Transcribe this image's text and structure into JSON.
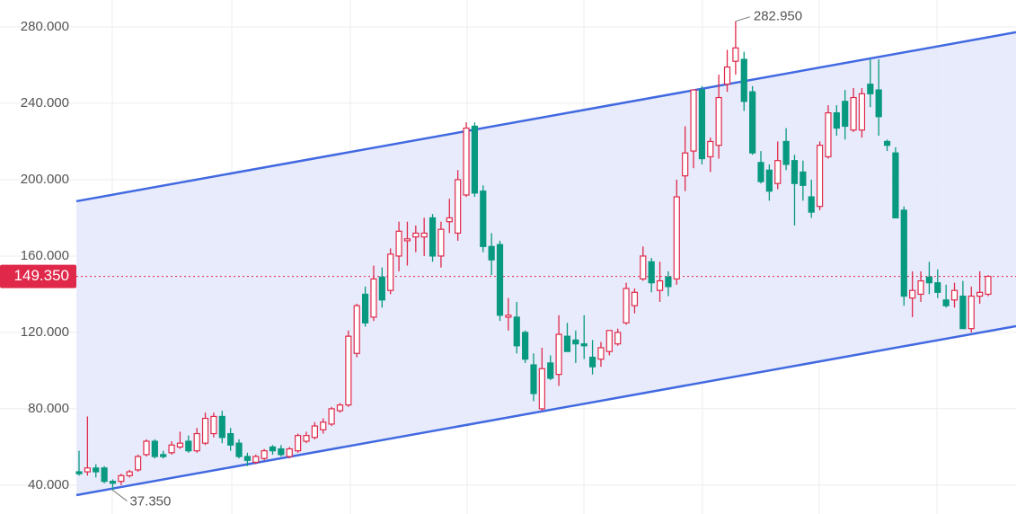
{
  "chart_data": {
    "type": "candlestick",
    "ylim": [
      24.9,
      294.1
    ],
    "yticks": [
      {
        "value": 40,
        "label": "40.000"
      },
      {
        "value": 80,
        "label": "80.000"
      },
      {
        "value": 120,
        "label": "120.000"
      },
      {
        "value": 160,
        "label": "160.000"
      },
      {
        "value": 200,
        "label": "200.000"
      },
      {
        "value": 240,
        "label": "240.000"
      },
      {
        "value": 280,
        "label": "280.000"
      }
    ],
    "grid": true,
    "up_color": "#e0294a",
    "down_color": "#089981",
    "open": [
      47,
      47,
      49,
      49,
      42,
      42,
      45,
      48,
      56,
      63,
      56,
      57,
      60,
      63,
      58,
      62,
      67,
      76,
      67,
      62,
      55,
      52,
      54,
      60,
      59,
      55,
      58,
      63,
      65,
      69,
      72,
      79,
      82,
      109,
      140,
      128,
      149,
      142,
      160,
      168,
      170,
      170,
      180,
      160,
      178,
      172,
      192,
      228,
      194,
      165,
      166,
      128,
      128,
      120,
      103,
      80,
      104,
      98,
      118,
      116,
      114,
      107,
      106,
      110,
      114,
      125,
      134,
      148,
      157,
      142,
      149,
      148,
      202,
      215,
      247,
      212,
      218,
      250,
      262,
      263,
      246,
      209,
      205,
      198,
      220,
      210,
      204,
      191,
      186,
      212,
      235,
      241,
      226,
      226,
      250,
      247,
      220,
      214,
      184,
      138,
      140,
      149,
      146,
      137,
      137,
      139,
      122,
      139,
      140
    ],
    "high": [
      58,
      76,
      51,
      50,
      43,
      46,
      48,
      56,
      64,
      64,
      58,
      63,
      68,
      66,
      70,
      78,
      78,
      79,
      70,
      64,
      57,
      56,
      59,
      61,
      61,
      60,
      67,
      68,
      73,
      75,
      81,
      83,
      121,
      135,
      144,
      155,
      154,
      164,
      178,
      178,
      176,
      180,
      182,
      178,
      190,
      205,
      230,
      230,
      197,
      172,
      168,
      138,
      136,
      121,
      109,
      112,
      108,
      129,
      125,
      121,
      129,
      116,
      115,
      121,
      122,
      146,
      143,
      165,
      159,
      157,
      152,
      200,
      228,
      247,
      249,
      222,
      255,
      268,
      282.95,
      267,
      249,
      215,
      208,
      220,
      227,
      213,
      210,
      200,
      220,
      239,
      239,
      247,
      248,
      248,
      263,
      263,
      221,
      217,
      186,
      152,
      152,
      157,
      153,
      145,
      146,
      147,
      144,
      152,
      150
    ],
    "low": [
      45,
      45,
      44,
      41,
      37.35,
      40,
      44,
      47,
      55,
      54,
      54,
      56,
      59,
      57,
      57,
      61,
      65,
      62,
      58,
      54,
      50,
      51,
      53,
      56,
      55,
      54,
      57,
      62,
      64,
      67,
      71,
      78,
      81,
      107,
      123,
      126,
      133,
      140,
      152,
      155,
      162,
      160,
      157,
      154,
      172,
      168,
      191,
      191,
      162,
      150,
      126,
      121,
      109,
      104,
      84,
      79,
      95,
      92,
      110,
      104,
      106,
      98,
      102,
      108,
      113,
      124,
      130,
      147,
      141,
      136,
      139,
      145,
      194,
      206,
      208,
      204,
      211,
      246,
      255,
      236,
      213,
      198,
      189,
      195,
      205,
      176,
      189,
      180,
      184,
      211,
      223,
      221,
      225,
      222,
      238,
      223,
      215,
      180,
      134,
      128,
      136,
      140,
      138,
      133,
      133,
      122,
      120,
      135,
      139
    ],
    "close": [
      46,
      49,
      47,
      42,
      41,
      45,
      47,
      55,
      63,
      55,
      55,
      61,
      62,
      58,
      67,
      75,
      76,
      65,
      61,
      55,
      53,
      55,
      58,
      58,
      56,
      59,
      66,
      66,
      71,
      73,
      80,
      82,
      118,
      134,
      125,
      148,
      137,
      161,
      173,
      169,
      172,
      172,
      160,
      174,
      180,
      200,
      227,
      193,
      165,
      158,
      129,
      129,
      113,
      106,
      88,
      101,
      96,
      119,
      110,
      114,
      113,
      102,
      112,
      121,
      120,
      143,
      141,
      160,
      146,
      147,
      144,
      191,
      214,
      247,
      211,
      220,
      243,
      259,
      269,
      241,
      214,
      199,
      194,
      210,
      208,
      198,
      197,
      183,
      218,
      235,
      227,
      228,
      243,
      245,
      245,
      233,
      218,
      180,
      139,
      142,
      147,
      146,
      141,
      134,
      142,
      122,
      139,
      141,
      149.35
    ],
    "last_price": {
      "value": 149.35,
      "label": "149.350",
      "color": "#e0294a"
    },
    "high_annotation": {
      "value": 282.95,
      "label": "282.950"
    },
    "low_annotation": {
      "value": 37.35,
      "label": "37.350"
    },
    "channel": {
      "color": "#4169e1",
      "fill": "#e6e9fb",
      "upper": [
        188.7,
        277.2
      ],
      "lower": [
        34.8,
        123.3
      ]
    }
  }
}
